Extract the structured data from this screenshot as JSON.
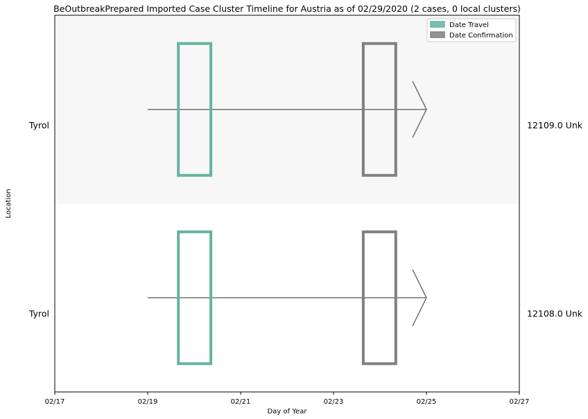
{
  "chart_data": {
    "type": "timeline",
    "title": "BeOutbreakPrepared Imported Case Cluster Timeline for Austria as of 02/29/2020   (2 cases, 0 local clusters)",
    "xlabel": "Day of Year",
    "ylabel": "Location",
    "x_ticks": [
      "02/17",
      "02/19",
      "02/21",
      "02/23",
      "02/25",
      "02/27"
    ],
    "x_range": [
      0,
      10
    ],
    "legend": {
      "placement": "top-right",
      "entries": [
        {
          "label": "Date Travel",
          "color": "#66b3a0"
        },
        {
          "label": "Date Confirmation",
          "color": "#808080"
        }
      ]
    },
    "colors": {
      "travel": "#66b3a0",
      "confirmation": "#808080",
      "arrow": "#707070",
      "band": "#f7f7f7"
    },
    "cases": [
      {
        "location": "Tyrol",
        "case_id": "12109.0 Unk",
        "line_start": 2,
        "line_end": 8,
        "travel_start": 2.66,
        "travel_end": 3.36,
        "confirm_start": 6.64,
        "confirm_end": 7.34,
        "shaded": true
      },
      {
        "location": "Tyrol",
        "case_id": "12108.0 Unk",
        "line_start": 2,
        "line_end": 8,
        "travel_start": 2.66,
        "travel_end": 3.36,
        "confirm_start": 6.64,
        "confirm_end": 7.34,
        "shaded": false
      }
    ]
  }
}
